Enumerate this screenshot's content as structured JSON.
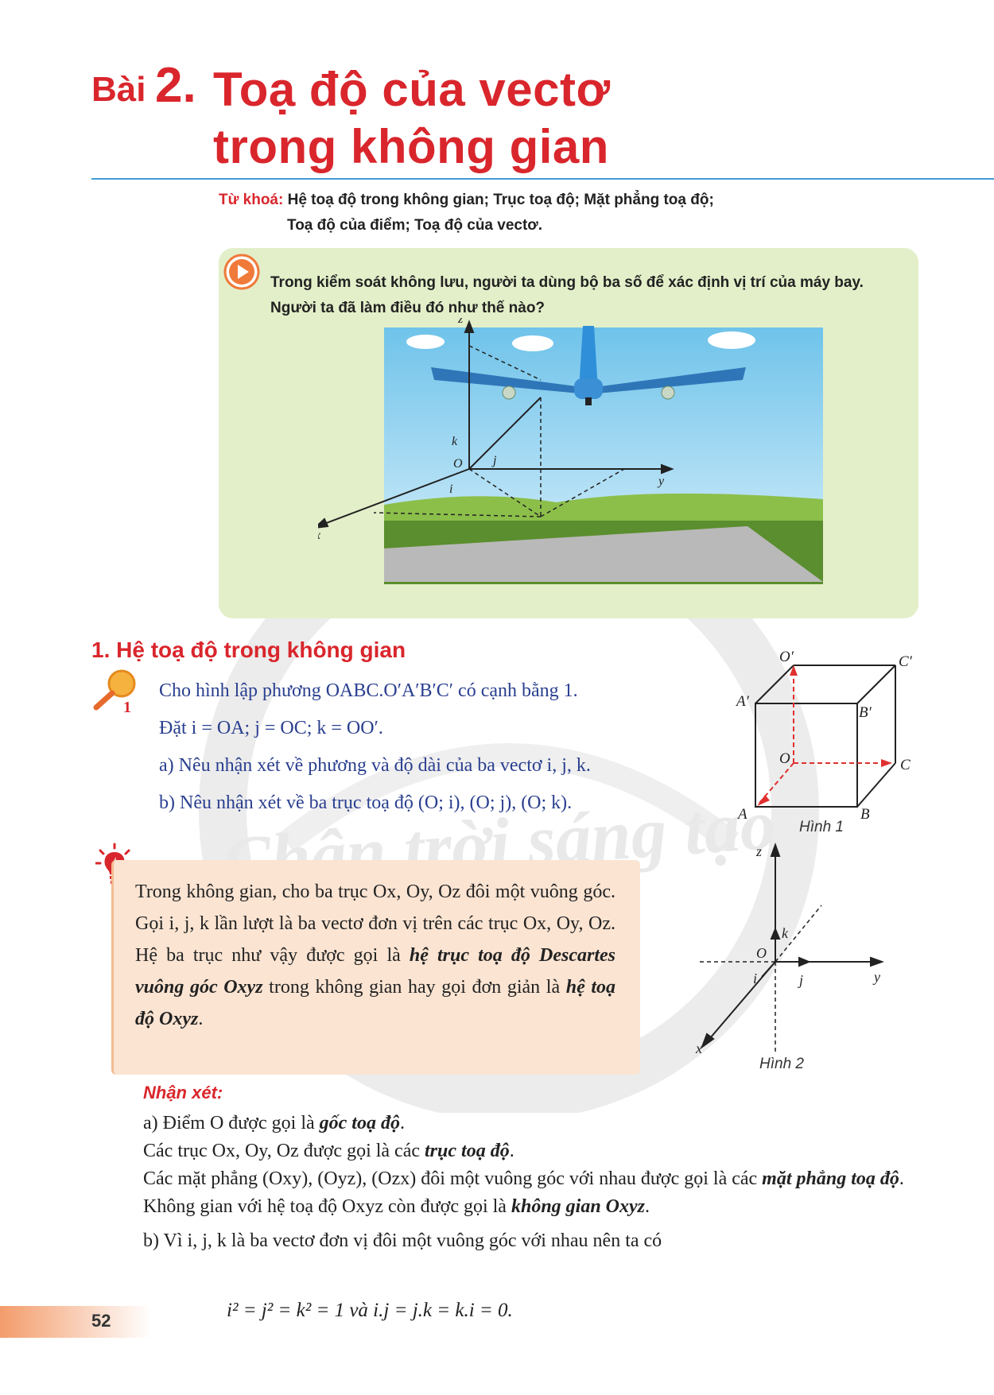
{
  "title": {
    "prefix": "Bài",
    "number": "2.",
    "line1": "Toạ độ của vectơ",
    "line2": "trong không gian"
  },
  "keywords": {
    "label": "Từ khoá:",
    "line1": "Hệ toạ độ trong không gian; Trục toạ độ; Mặt phẳng toạ độ;",
    "line2": "Toạ độ của điểm; Toạ độ của vectơ."
  },
  "intro": {
    "line1": "Trong kiểm soát không lưu, người ta dùng bộ ba số để xác định vị trí của máy bay.",
    "line2": "Người ta đã làm điều đó như thế nào?"
  },
  "scene_labels": {
    "z": "z",
    "x": "x",
    "y": "y",
    "o": "O",
    "i": "i",
    "j": "j",
    "k": "k"
  },
  "section1": {
    "heading": "1. Hệ toạ độ trong không gian"
  },
  "activity": {
    "icon_number": "1",
    "line1": "Cho hình lập phương OABC.O′A′B′C′ có cạnh bằng 1.",
    "line2": "Đặt i = OA; j = OC; k = OO′.",
    "line3": "a) Nêu nhận xét về phương và độ dài của ba vectơ i, j, k.",
    "line4": "b) Nêu nhận xét về ba trục toạ độ (O; i), (O; j), (O; k)."
  },
  "figure1": {
    "caption": "Hình 1",
    "labels": {
      "o_prime": "O′",
      "c_prime": "C′",
      "a_prime": "A′",
      "b_prime": "B′",
      "o": "O",
      "c": "C",
      "a": "A",
      "b": "B"
    }
  },
  "definition": {
    "p1": "Trong không gian, cho ba trục Ox, Oy, Oz đôi một vuông góc. Gọi i, j, k lần lượt là ba vectơ đơn vị trên các trục Ox, Oy, Oz. Hệ ba trục như vậy được gọi là ",
    "term1": "hệ trục toạ độ Descartes vuông góc Oxyz",
    "p2": " trong không gian hay gọi đơn giản là ",
    "term2": "hệ toạ độ Oxyz",
    "p3": "."
  },
  "figure2": {
    "caption": "Hình 2",
    "labels": {
      "z": "z",
      "y": "y",
      "x": "x",
      "o": "O",
      "i": "i",
      "j": "j",
      "k": "k"
    }
  },
  "remark": {
    "heading": "Nhận xét:",
    "a1_pre": "a) Điểm O được gọi là ",
    "a1_term": "gốc toạ độ",
    "a1_post": ".",
    "a2_pre": "Các trục Ox, Oy, Oz được gọi là các ",
    "a2_term": "trục toạ độ",
    "a2_post": ".",
    "a3_pre": "Các mặt phẳng (Oxy), (Oyz), (Ozx) đôi một vuông góc với nhau được gọi là các ",
    "a3_term": "mặt phẳng toạ độ",
    "a3_post": ".",
    "a4_pre": "Không gian với hệ toạ độ Oxyz còn được gọi là ",
    "a4_term": "không gian Oxyz",
    "a4_post": ".",
    "b1": "b) Vì i, j, k là ba vectơ đơn vị đôi một vuông góc với nhau nên ta có",
    "formula": "i² = j² = k² = 1 và i.j = j.k = k.i = 0."
  },
  "page_number": "52",
  "watermark": "Chân trời sáng tạo",
  "colors": {
    "title_red": "#d9262c",
    "rule_blue": "#3f9ad6",
    "intro_green": "#e3efc9",
    "def_peach": "#fbe4d2",
    "activity_blue": "#2a3f8f"
  }
}
